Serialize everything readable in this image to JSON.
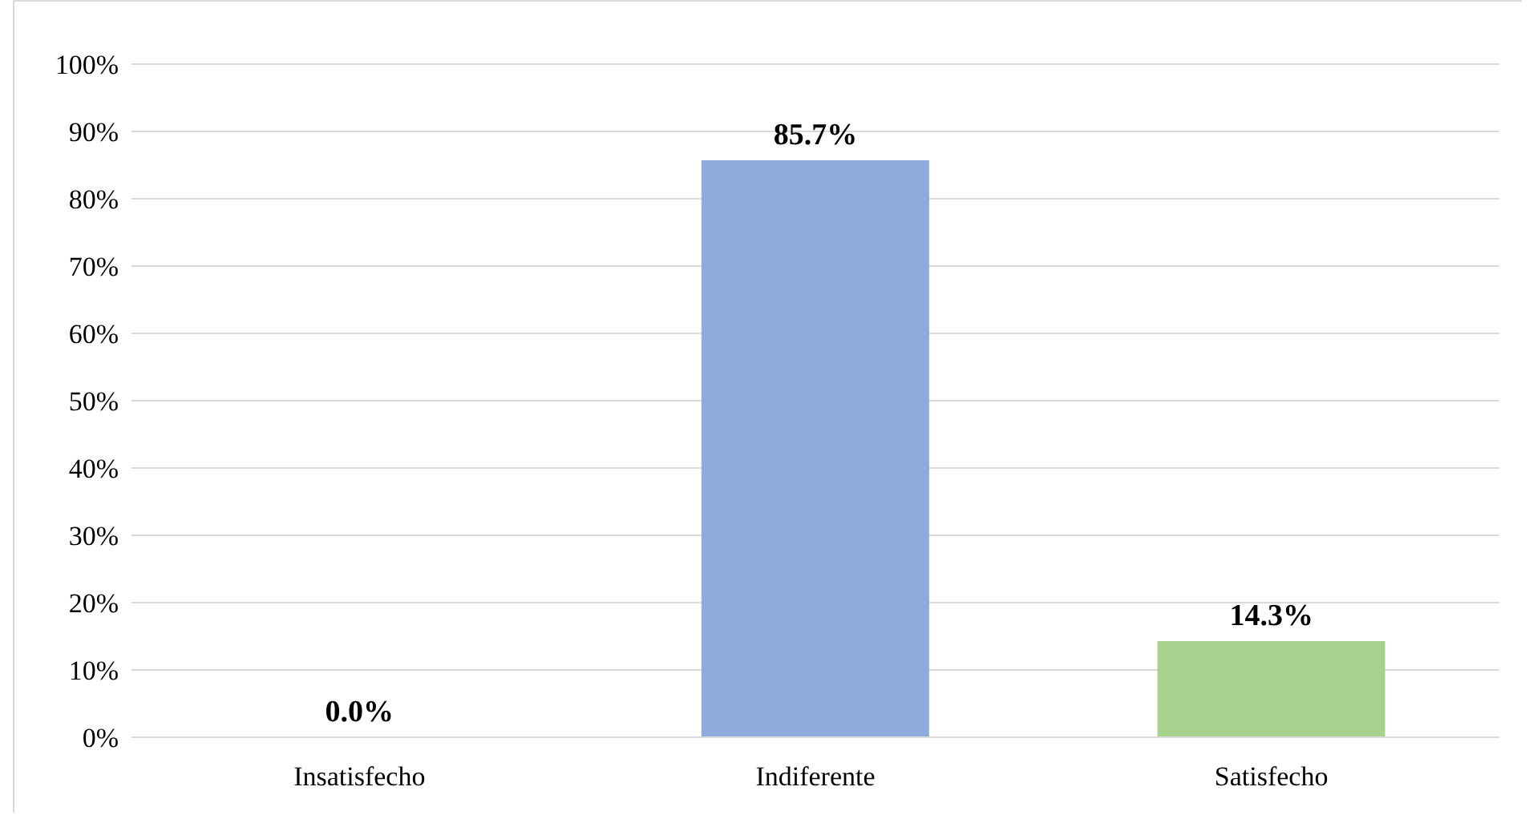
{
  "chart_data": {
    "type": "bar",
    "categories": [
      "Insatisfecho",
      "Indiferente",
      "Satisfecho"
    ],
    "values": [
      0,
      85.7,
      14.3
    ],
    "colors": [
      "#8faadc",
      "#8faadc",
      "#a9d18e"
    ],
    "value_labels": [
      "0.0%",
      "85.7%",
      "14.3%"
    ],
    "ylim": [
      0,
      100
    ],
    "yticks": [
      {
        "value": 0,
        "label": "0%"
      },
      {
        "value": 10,
        "label": "10%"
      },
      {
        "value": 20,
        "label": "20%"
      },
      {
        "value": 30,
        "label": "30%"
      },
      {
        "value": 40,
        "label": "40%"
      },
      {
        "value": 50,
        "label": "50%"
      },
      {
        "value": 60,
        "label": "60%"
      },
      {
        "value": 70,
        "label": "70%"
      },
      {
        "value": 80,
        "label": "80%"
      },
      {
        "value": 90,
        "label": "90%"
      },
      {
        "value": 100,
        "label": "100%"
      }
    ],
    "grid": "y"
  }
}
